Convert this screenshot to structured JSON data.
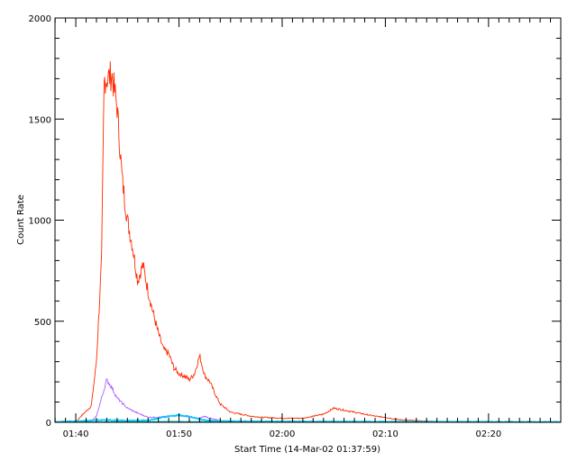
{
  "chart_data": {
    "type": "line",
    "title": "",
    "xlabel": "Start Time (14-Mar-02 01:37:59)",
    "ylabel": "Count Rate",
    "x_unit": "minutes (UT, 14-Mar-02)",
    "xlim": [
      "01:37:59",
      "02:27:00"
    ],
    "ylim": [
      0,
      2000
    ],
    "x_ticks": [
      "01:40",
      "01:50",
      "02:00",
      "02:10",
      "02:20"
    ],
    "y_ticks": [
      "0",
      "500",
      "1000",
      "1500",
      "2000"
    ],
    "grid": false,
    "legend": "none",
    "series": [
      {
        "color": "#ff2a00",
        "x": [
          "01:38:00",
          "01:40:00",
          "01:40:30",
          "01:41:30",
          "01:42:00",
          "01:42:30",
          "01:42:45",
          "01:43:00",
          "01:43:30",
          "01:44:00",
          "01:44:30",
          "01:45:00",
          "01:45:30",
          "01:46:00",
          "01:46:30",
          "01:47:00",
          "01:47:30",
          "01:48:00",
          "01:48:30",
          "01:49:00",
          "01:49:30",
          "01:50:00",
          "01:50:30",
          "01:51:00",
          "01:51:30",
          "01:52:00",
          "01:52:30",
          "01:53:00",
          "01:53:30",
          "01:54:00",
          "01:55:00",
          "01:56:00",
          "01:57:00",
          "01:58:00",
          "02:00:00",
          "02:02:00",
          "02:04:00",
          "02:05:00",
          "02:06:00",
          "02:07:00",
          "02:08:00",
          "02:09:00",
          "02:10:00",
          "02:11:00",
          "02:12:00",
          "02:14:00",
          "02:16:00",
          "02:18:00",
          "02:20:00",
          "02:27:00"
        ],
        "values": [
          0,
          0,
          30,
          80,
          300,
          800,
          1700,
          1700,
          1720,
          1560,
          1200,
          1000,
          870,
          700,
          780,
          650,
          540,
          440,
          360,
          340,
          270,
          240,
          230,
          210,
          240,
          330,
          230,
          200,
          140,
          90,
          50,
          40,
          30,
          25,
          20,
          20,
          40,
          70,
          60,
          50,
          40,
          30,
          25,
          15,
          10,
          6,
          3,
          2,
          1,
          0
        ]
      },
      {
        "color": "#b060ff",
        "x": [
          "01:38:00",
          "01:41:30",
          "01:42:00",
          "01:42:30",
          "01:43:00",
          "01:43:30",
          "01:44:00",
          "01:45:00",
          "01:46:00",
          "01:47:00",
          "01:48:00",
          "01:49:00",
          "01:50:00",
          "01:51:00",
          "01:52:00",
          "01:52:30",
          "01:53:00",
          "01:54:00",
          "01:56:00",
          "02:27:00"
        ],
        "values": [
          0,
          5,
          30,
          120,
          210,
          170,
          120,
          70,
          45,
          25,
          25,
          30,
          35,
          25,
          20,
          30,
          20,
          8,
          2,
          0
        ]
      },
      {
        "color": "#00c8ff",
        "x": [
          "01:38:00",
          "01:43:00",
          "01:45:00",
          "01:47:00",
          "01:48:00",
          "01:49:00",
          "01:50:00",
          "01:51:00",
          "01:52:00",
          "01:53:00",
          "01:55:00",
          "02:00:00",
          "02:27:00"
        ],
        "values": [
          2,
          12,
          8,
          10,
          20,
          30,
          35,
          28,
          15,
          8,
          5,
          4,
          2
        ]
      },
      {
        "color": "#00c8c8",
        "x": [
          "01:38:00",
          "01:45:00",
          "01:50:00",
          "01:55:00",
          "02:00:00",
          "02:10:00",
          "02:27:00"
        ],
        "values": [
          2,
          3,
          4,
          3,
          2,
          2,
          1
        ]
      }
    ]
  }
}
